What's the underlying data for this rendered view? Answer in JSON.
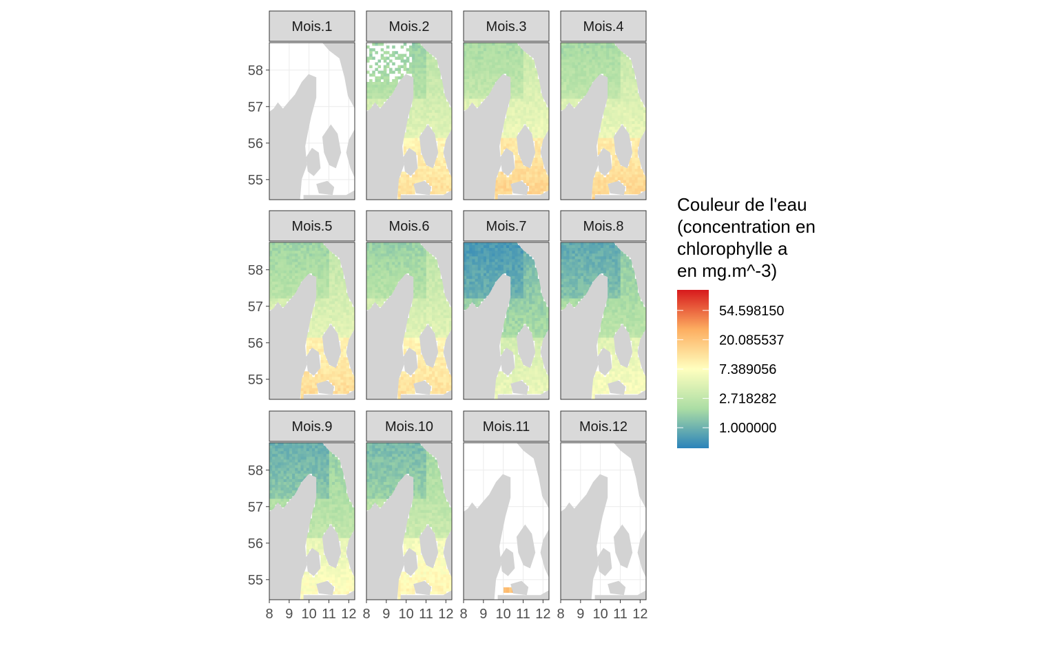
{
  "chart_data": {
    "type": "heatmap",
    "facet_labels": [
      "Mois.1",
      "Mois.2",
      "Mois.3",
      "Mois.4",
      "Mois.5",
      "Mois.6",
      "Mois.7",
      "Mois.8",
      "Mois.9",
      "Mois.10",
      "Mois.11",
      "Mois.12"
    ],
    "x_ticks": [
      "8",
      "9",
      "10",
      "11",
      "12"
    ],
    "x_tick_values": [
      8,
      9,
      10,
      11,
      12
    ],
    "y_ticks": [
      "55",
      "56",
      "57",
      "58"
    ],
    "y_tick_values": [
      55,
      56,
      57,
      58
    ],
    "xlim": [
      8,
      12.3
    ],
    "ylim": [
      54.45,
      58.75
    ],
    "legend": {
      "title_lines": [
        "Couleur de l'eau",
        "(concentration en",
        "chlorophylle a",
        "en mg.m^-3)"
      ],
      "labels": [
        "54.598150",
        "20.085537",
        "7.389056",
        "2.718282",
        "1.000000"
      ],
      "log_values": [
        4,
        3,
        2,
        1,
        0
      ],
      "log_range": [
        -0.7,
        4.7
      ],
      "colors": [
        "#2b83ba",
        "#abdda4",
        "#ffffbf",
        "#fdae61",
        "#d7191c"
      ],
      "position": "right"
    },
    "month_mean_log": [
      null,
      1.3,
      1.5,
      1.45,
      1.35,
      1.3,
      0.45,
      0.7,
      0.8,
      0.95,
      null,
      null
    ],
    "land_color": "#d3d3d3",
    "strip_color": "#d9d9d9",
    "grid": true
  }
}
